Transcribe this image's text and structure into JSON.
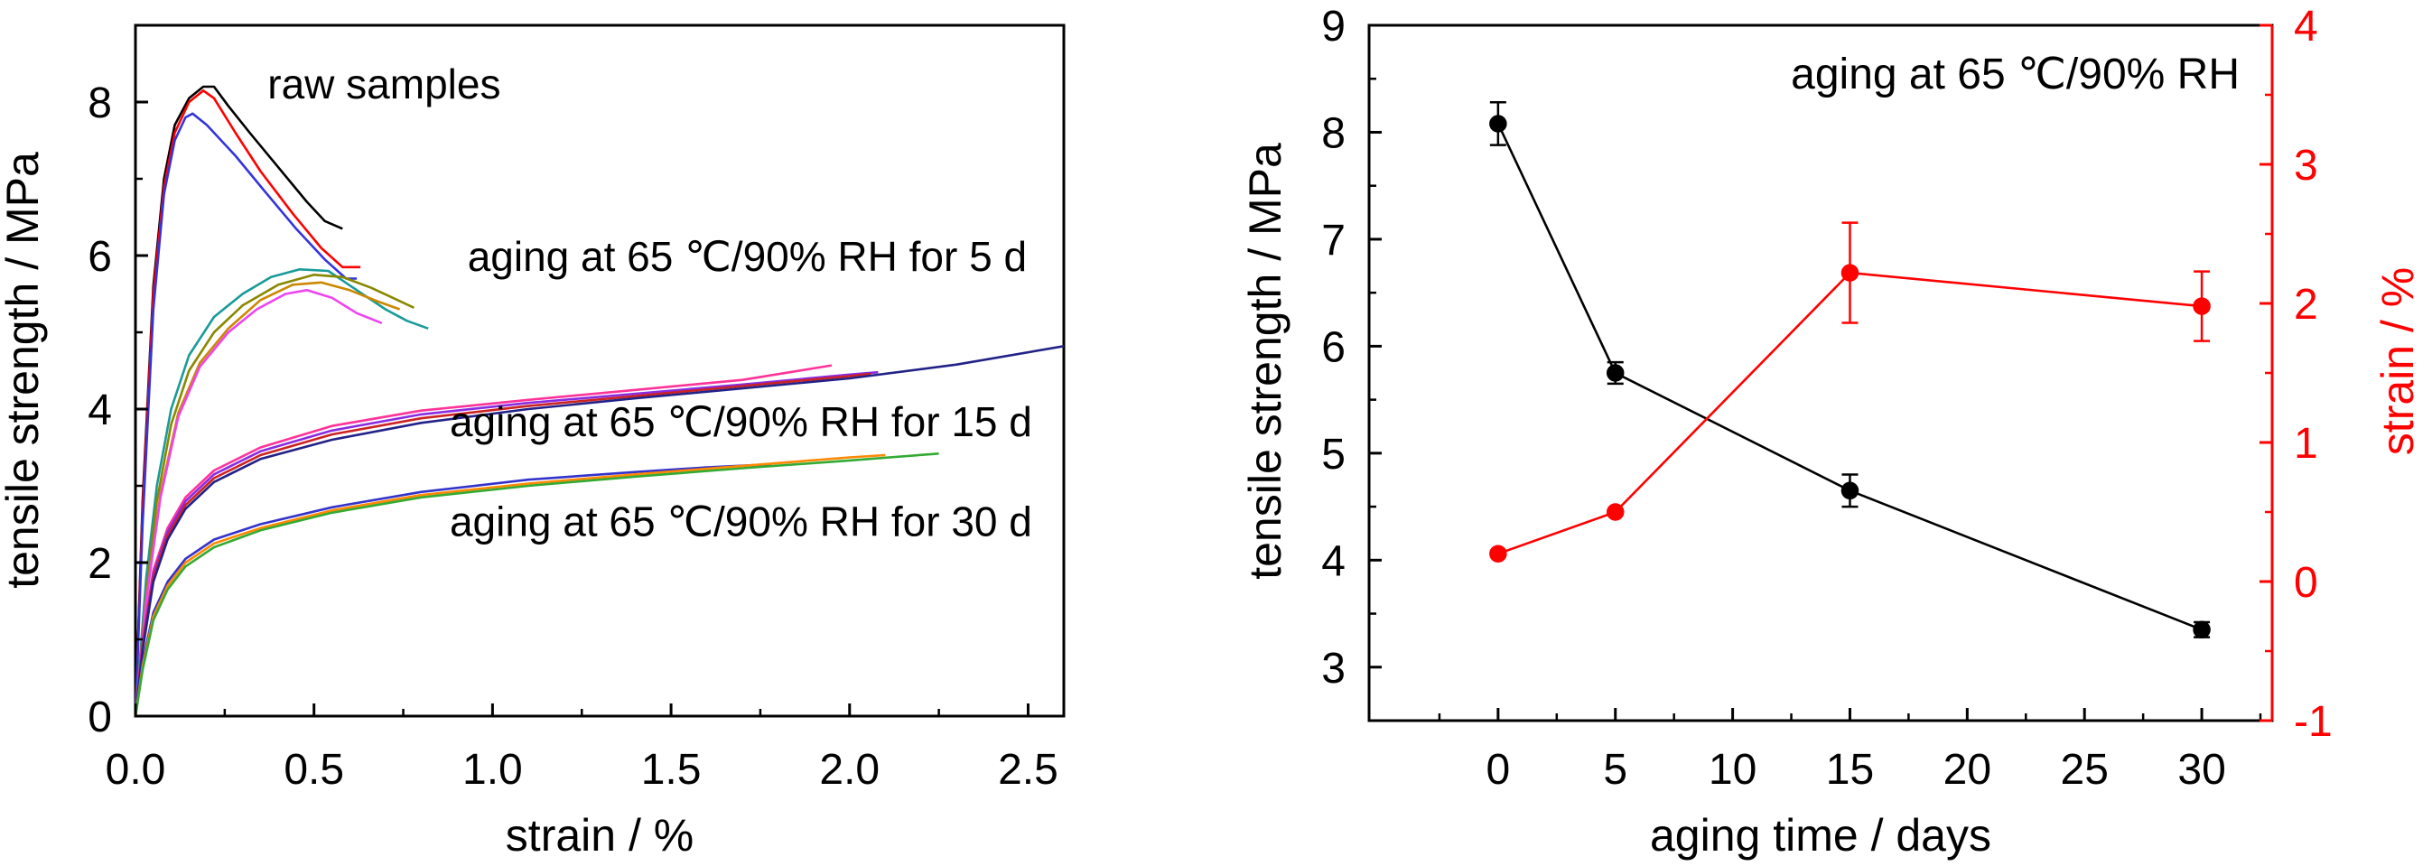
{
  "chart_data": [
    {
      "type": "line",
      "xlabel": "strain / %",
      "ylabel": "tensile strength / MPa",
      "xlim": [
        0,
        2.6
      ],
      "ylim": [
        0,
        9
      ],
      "x_ticks": [
        "0.0",
        "0.5",
        "1.0",
        "1.5",
        "2.0",
        "2.5"
      ],
      "y_ticks": [
        "0",
        "2",
        "4",
        "6",
        "8"
      ],
      "annotations": [
        {
          "text": "raw samples",
          "x": 0.37,
          "y": 8.05
        },
        {
          "text": "aging at 65 ℃/90% RH for 5 d",
          "x": 0.93,
          "y": 5.8
        },
        {
          "text": "aging at 65 ℃/90% RH for 15 d",
          "x": 0.88,
          "y": 3.65
        },
        {
          "text": "aging at 65 ℃/90% RH for 30 d",
          "x": 0.88,
          "y": 2.35
        }
      ],
      "series": [
        {
          "group": "raw",
          "color": "#000000",
          "points": [
            [
              0,
              0
            ],
            [
              0.02,
              2.8
            ],
            [
              0.05,
              5.6
            ],
            [
              0.08,
              7.0
            ],
            [
              0.11,
              7.7
            ],
            [
              0.15,
              8.05
            ],
            [
              0.19,
              8.2
            ],
            [
              0.22,
              8.2
            ],
            [
              0.26,
              7.95
            ],
            [
              0.32,
              7.6
            ],
            [
              0.4,
              7.15
            ],
            [
              0.48,
              6.7
            ],
            [
              0.53,
              6.45
            ],
            [
              0.58,
              6.35
            ]
          ]
        },
        {
          "group": "raw",
          "color": "#ff0000",
          "points": [
            [
              0,
              0
            ],
            [
              0.02,
              2.7
            ],
            [
              0.05,
              5.5
            ],
            [
              0.08,
              6.9
            ],
            [
              0.11,
              7.6
            ],
            [
              0.15,
              8.0
            ],
            [
              0.19,
              8.15
            ],
            [
              0.22,
              8.05
            ],
            [
              0.28,
              7.6
            ],
            [
              0.35,
              7.1
            ],
            [
              0.44,
              6.55
            ],
            [
              0.52,
              6.1
            ],
            [
              0.58,
              5.85
            ],
            [
              0.63,
              5.85
            ]
          ]
        },
        {
          "group": "raw",
          "color": "#3333dd",
          "points": [
            [
              0,
              0
            ],
            [
              0.02,
              2.5
            ],
            [
              0.05,
              5.3
            ],
            [
              0.08,
              6.8
            ],
            [
              0.11,
              7.5
            ],
            [
              0.14,
              7.8
            ],
            [
              0.16,
              7.85
            ],
            [
              0.2,
              7.7
            ],
            [
              0.28,
              7.3
            ],
            [
              0.36,
              6.85
            ],
            [
              0.45,
              6.35
            ],
            [
              0.53,
              5.95
            ],
            [
              0.59,
              5.7
            ],
            [
              0.62,
              5.7
            ]
          ]
        },
        {
          "group": "5 d",
          "color": "#1a9a9a",
          "points": [
            [
              0,
              0
            ],
            [
              0.03,
              1.8
            ],
            [
              0.06,
              3.0
            ],
            [
              0.1,
              4.0
            ],
            [
              0.15,
              4.7
            ],
            [
              0.22,
              5.2
            ],
            [
              0.3,
              5.5
            ],
            [
              0.38,
              5.72
            ],
            [
              0.46,
              5.82
            ],
            [
              0.54,
              5.8
            ],
            [
              0.62,
              5.55
            ],
            [
              0.7,
              5.3
            ],
            [
              0.76,
              5.15
            ],
            [
              0.82,
              5.05
            ]
          ]
        },
        {
          "group": "5 d",
          "color": "#888800",
          "points": [
            [
              0,
              0
            ],
            [
              0.03,
              1.6
            ],
            [
              0.06,
              2.8
            ],
            [
              0.1,
              3.8
            ],
            [
              0.15,
              4.5
            ],
            [
              0.22,
              5.0
            ],
            [
              0.3,
              5.35
            ],
            [
              0.4,
              5.62
            ],
            [
              0.5,
              5.75
            ],
            [
              0.58,
              5.72
            ],
            [
              0.66,
              5.58
            ],
            [
              0.72,
              5.45
            ],
            [
              0.78,
              5.32
            ]
          ]
        },
        {
          "group": "5 d",
          "color": "#cc8800",
          "points": [
            [
              0,
              0
            ],
            [
              0.03,
              1.5
            ],
            [
              0.07,
              2.9
            ],
            [
              0.12,
              3.95
            ],
            [
              0.18,
              4.6
            ],
            [
              0.26,
              5.05
            ],
            [
              0.35,
              5.42
            ],
            [
              0.44,
              5.62
            ],
            [
              0.52,
              5.65
            ],
            [
              0.6,
              5.55
            ],
            [
              0.68,
              5.4
            ],
            [
              0.74,
              5.3
            ]
          ]
        },
        {
          "group": "5 d",
          "color": "#ee44ee",
          "points": [
            [
              0,
              0
            ],
            [
              0.03,
              1.5
            ],
            [
              0.07,
              2.85
            ],
            [
              0.12,
              3.9
            ],
            [
              0.18,
              4.55
            ],
            [
              0.26,
              5.0
            ],
            [
              0.34,
              5.3
            ],
            [
              0.42,
              5.5
            ],
            [
              0.48,
              5.55
            ],
            [
              0.55,
              5.45
            ],
            [
              0.62,
              5.25
            ],
            [
              0.69,
              5.12
            ]
          ]
        },
        {
          "group": "15 d",
          "color": "#ff3399",
          "points": [
            [
              0,
              0
            ],
            [
              0.02,
              1.0
            ],
            [
              0.05,
              1.9
            ],
            [
              0.09,
              2.45
            ],
            [
              0.14,
              2.85
            ],
            [
              0.22,
              3.2
            ],
            [
              0.35,
              3.5
            ],
            [
              0.55,
              3.78
            ],
            [
              0.8,
              3.98
            ],
            [
              1.1,
              4.12
            ],
            [
              1.4,
              4.25
            ],
            [
              1.7,
              4.38
            ],
            [
              1.95,
              4.57
            ]
          ]
        },
        {
          "group": "15 d",
          "color": "#8a2be2",
          "points": [
            [
              0,
              0
            ],
            [
              0.02,
              0.95
            ],
            [
              0.05,
              1.85
            ],
            [
              0.09,
              2.4
            ],
            [
              0.14,
              2.8
            ],
            [
              0.22,
              3.15
            ],
            [
              0.35,
              3.45
            ],
            [
              0.55,
              3.72
            ],
            [
              0.8,
              3.93
            ],
            [
              1.1,
              4.08
            ],
            [
              1.4,
              4.2
            ],
            [
              1.7,
              4.32
            ],
            [
              2.0,
              4.45
            ],
            [
              2.08,
              4.48
            ]
          ]
        },
        {
          "group": "15 d",
          "color": "#cc2222",
          "points": [
            [
              0,
              0
            ],
            [
              0.02,
              0.9
            ],
            [
              0.05,
              1.8
            ],
            [
              0.09,
              2.35
            ],
            [
              0.14,
              2.75
            ],
            [
              0.22,
              3.1
            ],
            [
              0.35,
              3.4
            ],
            [
              0.55,
              3.67
            ],
            [
              0.8,
              3.88
            ],
            [
              1.1,
              4.04
            ],
            [
              1.4,
              4.17
            ],
            [
              1.7,
              4.3
            ],
            [
              2.0,
              4.43
            ],
            [
              2.06,
              4.46
            ]
          ]
        },
        {
          "group": "15 d",
          "color": "#222288",
          "points": [
            [
              0,
              0
            ],
            [
              0.02,
              0.85
            ],
            [
              0.05,
              1.75
            ],
            [
              0.09,
              2.3
            ],
            [
              0.14,
              2.7
            ],
            [
              0.22,
              3.05
            ],
            [
              0.35,
              3.35
            ],
            [
              0.55,
              3.6
            ],
            [
              0.8,
              3.82
            ],
            [
              1.1,
              4.0
            ],
            [
              1.4,
              4.14
            ],
            [
              1.7,
              4.27
            ],
            [
              2.0,
              4.4
            ],
            [
              2.3,
              4.58
            ],
            [
              2.6,
              4.82
            ]
          ]
        },
        {
          "group": "30 d",
          "color": "#3333cc",
          "points": [
            [
              0,
              0
            ],
            [
              0.02,
              0.7
            ],
            [
              0.05,
              1.35
            ],
            [
              0.09,
              1.75
            ],
            [
              0.14,
              2.05
            ],
            [
              0.22,
              2.3
            ],
            [
              0.35,
              2.5
            ],
            [
              0.55,
              2.72
            ],
            [
              0.8,
              2.92
            ],
            [
              1.1,
              3.08
            ],
            [
              1.4,
              3.18
            ],
            [
              1.6,
              3.24
            ],
            [
              1.78,
              3.28
            ]
          ]
        },
        {
          "group": "30 d",
          "color": "#ff8800",
          "points": [
            [
              0,
              0
            ],
            [
              0.02,
              0.65
            ],
            [
              0.05,
              1.3
            ],
            [
              0.09,
              1.7
            ],
            [
              0.14,
              2.0
            ],
            [
              0.22,
              2.25
            ],
            [
              0.35,
              2.45
            ],
            [
              0.55,
              2.68
            ],
            [
              0.8,
              2.88
            ],
            [
              1.1,
              3.03
            ],
            [
              1.4,
              3.15
            ],
            [
              1.7,
              3.26
            ],
            [
              2.0,
              3.37
            ],
            [
              2.1,
              3.4
            ]
          ]
        },
        {
          "group": "30 d",
          "color": "#33aa33",
          "points": [
            [
              0,
              0
            ],
            [
              0.02,
              0.6
            ],
            [
              0.05,
              1.25
            ],
            [
              0.09,
              1.65
            ],
            [
              0.14,
              1.95
            ],
            [
              0.22,
              2.2
            ],
            [
              0.35,
              2.42
            ],
            [
              0.55,
              2.65
            ],
            [
              0.8,
              2.85
            ],
            [
              1.1,
              3.0
            ],
            [
              1.4,
              3.12
            ],
            [
              1.7,
              3.23
            ],
            [
              2.0,
              3.33
            ],
            [
              2.25,
              3.42
            ]
          ]
        }
      ]
    },
    {
      "type": "scatter",
      "title": "aging at 65 ℃/90% RH",
      "xlabel": "aging time / days",
      "ylabel_left": "tensile strength / MPa",
      "ylabel_right": "strain / %",
      "xlim": [
        -5.5,
        33
      ],
      "ylim_left": [
        2.5,
        9
      ],
      "ylim_right": [
        -1,
        4
      ],
      "x_ticks": [
        "0",
        "5",
        "10",
        "15",
        "20",
        "25",
        "30"
      ],
      "y_ticks_left": [
        "3",
        "4",
        "5",
        "6",
        "7",
        "8",
        "9"
      ],
      "y_ticks_right": [
        "-1",
        "0",
        "1",
        "2",
        "3",
        "4"
      ],
      "series": [
        {
          "axis": "left",
          "color": "#000000",
          "x": [
            0,
            5,
            15,
            30
          ],
          "y": [
            8.08,
            5.75,
            4.65,
            3.35
          ],
          "error": [
            0.2,
            0.1,
            0.15,
            0.07
          ]
        },
        {
          "axis": "right",
          "color": "#ff0000",
          "x": [
            0,
            5,
            15,
            30
          ],
          "y": [
            0.2,
            0.5,
            2.22,
            1.98
          ],
          "error": [
            0.0,
            0.0,
            0.36,
            0.25
          ]
        }
      ]
    }
  ]
}
